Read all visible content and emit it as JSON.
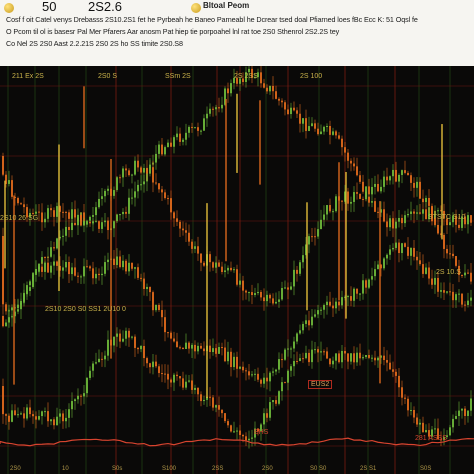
{
  "header": {
    "price_primary": "50",
    "price_secondary": "2S2.6",
    "brand": "Bltoal Peom",
    "ticker_lines": [
      "Cosf f oit Catel venys Drebasss 2S10.2S1 fet he Pyrbeah he Baneo Parneabl he Dcrear tsed doal Pfiarned loes fBc Ecc K: 51 Oqsl fe",
      "O Pcom til ol is basesr Pal Mer Pfarers Aar anosm Pat hiep tie porpoahel lnl rat toe 2S0 Sthenrol 2S2.2S tey",
      "Co Nel 2S 2S0 Aast 2.2.21S 2S0 2S ho SS timite 2S0.S8"
    ]
  },
  "chart": {
    "labels_top": [
      "211 Ex 2S",
      "2S0 S",
      "SSm 2S",
      "2S 2SS",
      "2S 100"
    ],
    "label_left_mid": "2S10 26 SG",
    "label_right_mid": "STSTC S10",
    "label_center": "2S10 2S0 S0 SS1 2U10 0",
    "label_ref": "2S 10.S",
    "label_box": "EUS2",
    "label_red_low": "BHS",
    "label_bottom_right": "281 ASSS",
    "axis_ticks": [
      "2S0",
      "10",
      "S0s",
      "S100",
      "2SS",
      "2S0",
      "S0 S0",
      "2S S1",
      "S0S"
    ],
    "colors": {
      "background": "#0a0908",
      "bull": "#6db83a",
      "bear": "#e06a1c",
      "grid_red": "#7a1a10",
      "grid_green": "#1e3d14"
    }
  }
}
